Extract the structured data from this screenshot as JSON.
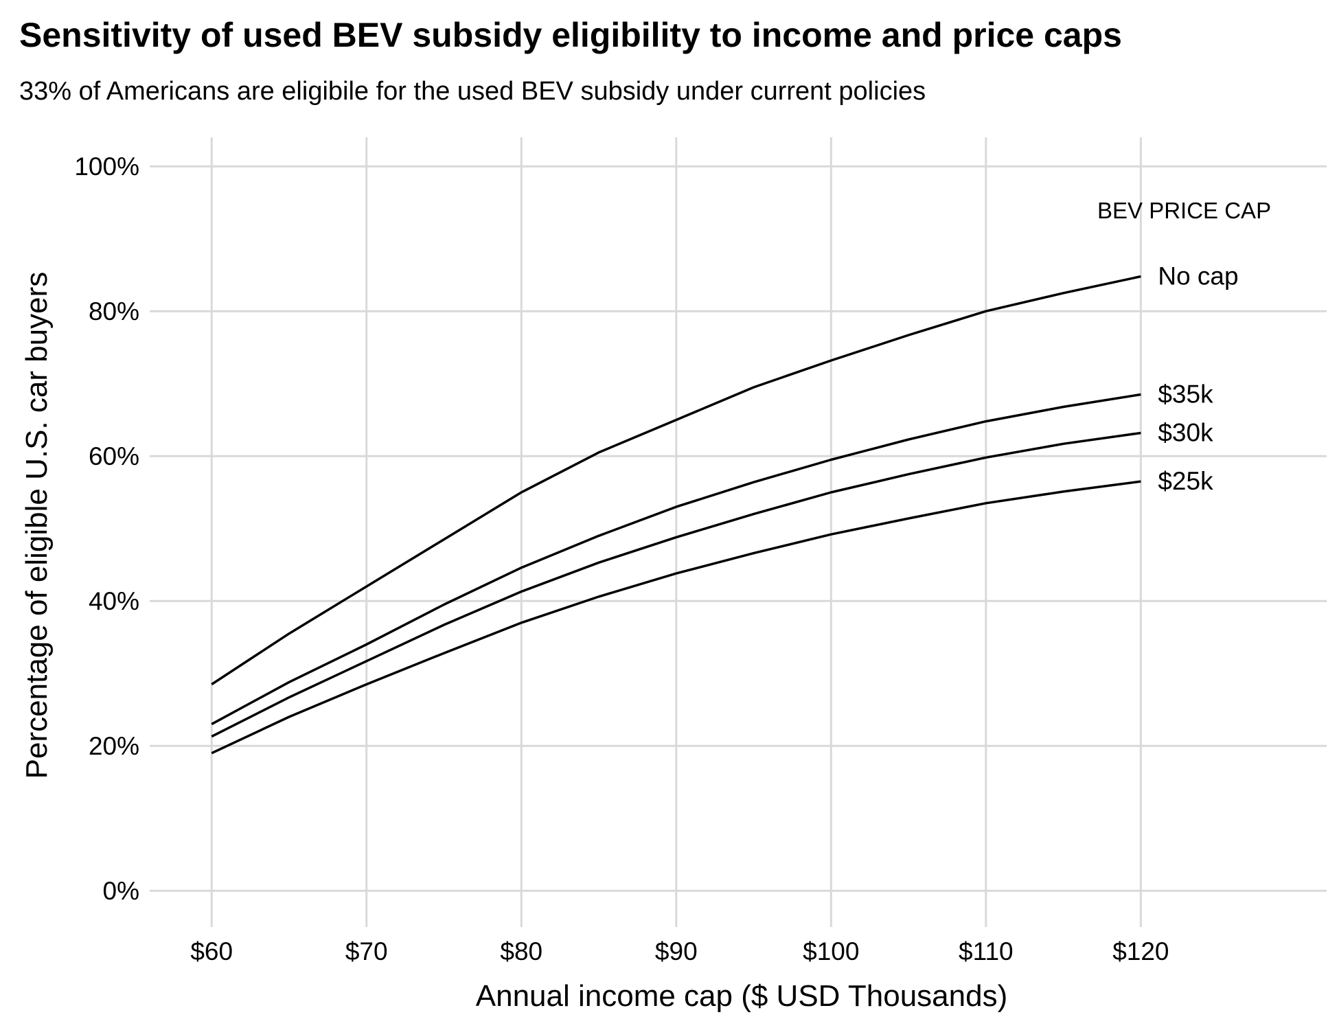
{
  "chart_data": {
    "type": "line",
    "title": "Sensitivity of used BEV subsidy eligibility to income and price caps",
    "subtitle": "33% of Americans are eligibile for the used BEV subsidy under current policies",
    "xlabel": "Annual income cap ($ USD Thousands)",
    "ylabel": "Percentage of eligible U.S. car buyers",
    "legend_title": "BEV PRICE CAP",
    "x": [
      60,
      65,
      70,
      75,
      80,
      85,
      90,
      95,
      100,
      105,
      110,
      115,
      120
    ],
    "xlim": [
      56,
      132
    ],
    "ylim": [
      -5,
      104
    ],
    "x_ticks": [
      60,
      70,
      80,
      90,
      100,
      110,
      120
    ],
    "x_tick_labels": [
      "$60",
      "$70",
      "$80",
      "$90",
      "$100",
      "$110",
      "$120"
    ],
    "y_ticks": [
      0,
      20,
      40,
      60,
      80,
      100
    ],
    "y_tick_labels": [
      "0%",
      "20%",
      "40%",
      "60%",
      "80%",
      "100%"
    ],
    "grid": true,
    "series": [
      {
        "name": "No cap",
        "values": [
          28.5,
          35.5,
          42,
          48.5,
          55,
          60.5,
          65,
          69.5,
          73.2,
          76.7,
          80,
          82.5,
          84.8
        ]
      },
      {
        "name": "$35k",
        "values": [
          23,
          28.8,
          34,
          39.5,
          44.6,
          49,
          53,
          56.4,
          59.5,
          62.3,
          64.8,
          66.8,
          68.5
        ]
      },
      {
        "name": "$30k",
        "values": [
          21.3,
          26.7,
          31.7,
          36.7,
          41.3,
          45.3,
          48.8,
          52,
          55,
          57.5,
          59.8,
          61.7,
          63.2
        ]
      },
      {
        "name": "$25k",
        "values": [
          19,
          24,
          28.5,
          32.8,
          37,
          40.6,
          43.8,
          46.6,
          49.2,
          51.4,
          53.5,
          55.1,
          56.5
        ]
      }
    ]
  }
}
